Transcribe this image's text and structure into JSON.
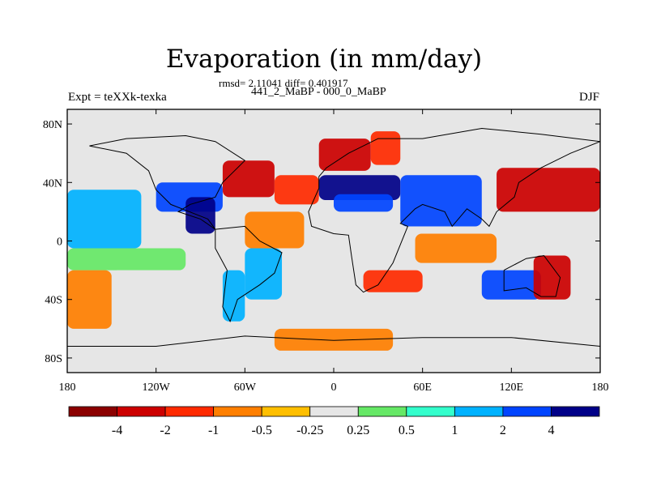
{
  "header": {
    "title": "Evaporation (in mm/day)",
    "stats": "rmsd= 2.11041 diff= 0.401917",
    "subtitle": "441_2_MaBP - 000_0_MaBP",
    "left_label": "Expt = teXXk-texka",
    "right_label": "DJF"
  },
  "chart_data": {
    "type": "heatmap",
    "title": "Evaporation (in mm/day)",
    "subtitle": "441_2_MaBP - 000_0_MaBP",
    "projection": "cylindrical equidistant",
    "xlim": [
      -180,
      180
    ],
    "ylim": [
      -90,
      90
    ],
    "x_ticks": [
      {
        "value": -180,
        "label": "180"
      },
      {
        "value": -120,
        "label": "120W"
      },
      {
        "value": -60,
        "label": "60W"
      },
      {
        "value": 0,
        "label": "0"
      },
      {
        "value": 60,
        "label": "60E"
      },
      {
        "value": 120,
        "label": "120E"
      },
      {
        "value": 180,
        "label": "180"
      }
    ],
    "y_ticks": [
      {
        "value": 80,
        "label": "80N"
      },
      {
        "value": 40,
        "label": "40N"
      },
      {
        "value": 0,
        "label": "0"
      },
      {
        "value": -40,
        "label": "40S"
      },
      {
        "value": -80,
        "label": "80S"
      }
    ],
    "colorbar": {
      "levels": [
        -4,
        -2,
        -1,
        -0.5,
        -0.25,
        0.25,
        0.5,
        1,
        2,
        4
      ],
      "labels": [
        "-4",
        "-2",
        "-1",
        "-0.5",
        "-0.25",
        "0.25",
        "0.5",
        "1",
        "2",
        "4"
      ],
      "colors": [
        "#8b0000",
        "#cc0000",
        "#ff2a00",
        "#ff7f00",
        "#ffbf00",
        "#e6e6e6",
        "#66e866",
        "#33ffcc",
        "#00b2ff",
        "#0044ff",
        "#000088"
      ]
    },
    "regions": [
      {
        "lon": [
          -180,
          -130
        ],
        "lat": [
          -5,
          35
        ],
        "level": 8
      },
      {
        "lon": [
          -180,
          -100
        ],
        "lat": [
          -20,
          -5
        ],
        "level": 6
      },
      {
        "lon": [
          -180,
          -150
        ],
        "lat": [
          -60,
          -20
        ],
        "level": 3
      },
      {
        "lon": [
          -150,
          -100
        ],
        "lat": [
          -60,
          -20
        ],
        "level": 5
      },
      {
        "lon": [
          -120,
          -75
        ],
        "lat": [
          20,
          40
        ],
        "level": 9
      },
      {
        "lon": [
          -100,
          -80
        ],
        "lat": [
          5,
          30
        ],
        "level": 10
      },
      {
        "lon": [
          -75,
          -40
        ],
        "lat": [
          30,
          55
        ],
        "level": 1
      },
      {
        "lon": [
          -40,
          -10
        ],
        "lat": [
          25,
          45
        ],
        "level": 2
      },
      {
        "lon": [
          -60,
          -20
        ],
        "lat": [
          -5,
          20
        ],
        "level": 3
      },
      {
        "lon": [
          -60,
          -35
        ],
        "lat": [
          -40,
          -5
        ],
        "level": 8
      },
      {
        "lon": [
          -75,
          -60
        ],
        "lat": [
          -55,
          -20
        ],
        "level": 8
      },
      {
        "lon": [
          -10,
          25
        ],
        "lat": [
          48,
          70
        ],
        "level": 1
      },
      {
        "lon": [
          25,
          45
        ],
        "lat": [
          52,
          75
        ],
        "level": 2
      },
      {
        "lon": [
          -10,
          45
        ],
        "lat": [
          28,
          45
        ],
        "level": 10
      },
      {
        "lon": [
          0,
          40
        ],
        "lat": [
          20,
          32
        ],
        "level": 9
      },
      {
        "lon": [
          20,
          60
        ],
        "lat": [
          -35,
          -20
        ],
        "level": 2
      },
      {
        "lon": [
          55,
          110
        ],
        "lat": [
          -15,
          5
        ],
        "level": 3
      },
      {
        "lon": [
          45,
          100
        ],
        "lat": [
          10,
          45
        ],
        "level": 9
      },
      {
        "lon": [
          100,
          140
        ],
        "lat": [
          -40,
          -20
        ],
        "level": 9
      },
      {
        "lon": [
          110,
          180
        ],
        "lat": [
          20,
          50
        ],
        "level": 1
      },
      {
        "lon": [
          135,
          160
        ],
        "lat": [
          -40,
          -10
        ],
        "level": 1
      },
      {
        "lon": [
          -40,
          40
        ],
        "lat": [
          -75,
          -60
        ],
        "level": 3
      }
    ]
  }
}
